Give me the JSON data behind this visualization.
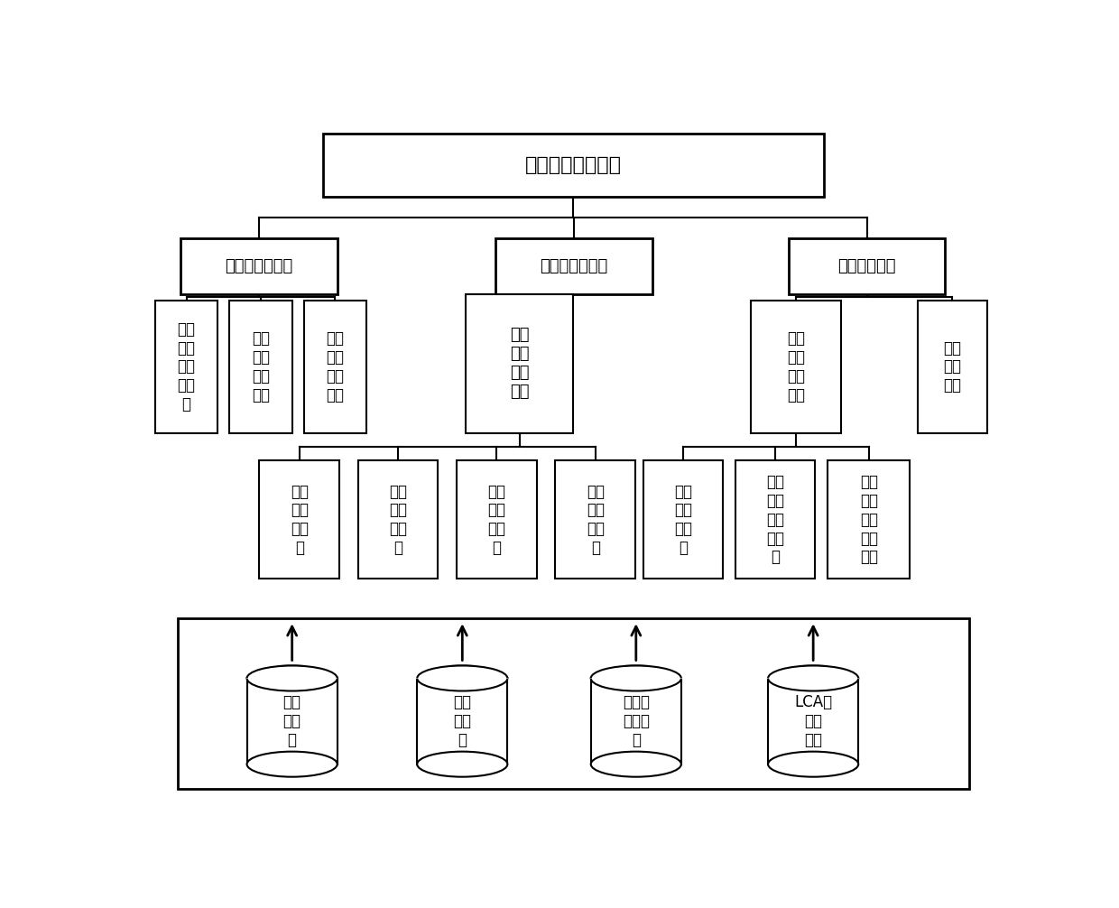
{
  "title": "低碳设计集成系统",
  "level1": [
    "零件实例库模块",
    "参数化设计模块",
    "低碳设计模块"
  ],
  "level2_left_labels": [
    "汽车\n典型\n零件\n库单\n元",
    "典型\n零件\n查询\n单元",
    "典型\n零件\n预览\n单元"
  ],
  "level2_mid_label": "零件\n低碳\n设计\n单元",
  "level2_right_labels": [
    "组件\n低碳\n设计\n单元",
    "设计\n建议\n单元"
  ],
  "level3_mid_labels": [
    "零件\n选择\n子单\n元",
    "材料\n选择\n子单\n元",
    "工艺\n设计\n子单\n元",
    "影响\n分布\n子单\n元"
  ],
  "level3_right_labels": [
    "组件\n装配\n子单\n元",
    "组件\n零件\n信息\n子单\n元",
    "组件\n碳排\n放分\n布子\n单元"
  ],
  "db_labels": [
    "零件\n实例\n库",
    "材料\n数据\n库",
    "特征工\n艺数据\n库",
    "LCA基\n础数\n据库"
  ],
  "bg_color": "#ffffff"
}
